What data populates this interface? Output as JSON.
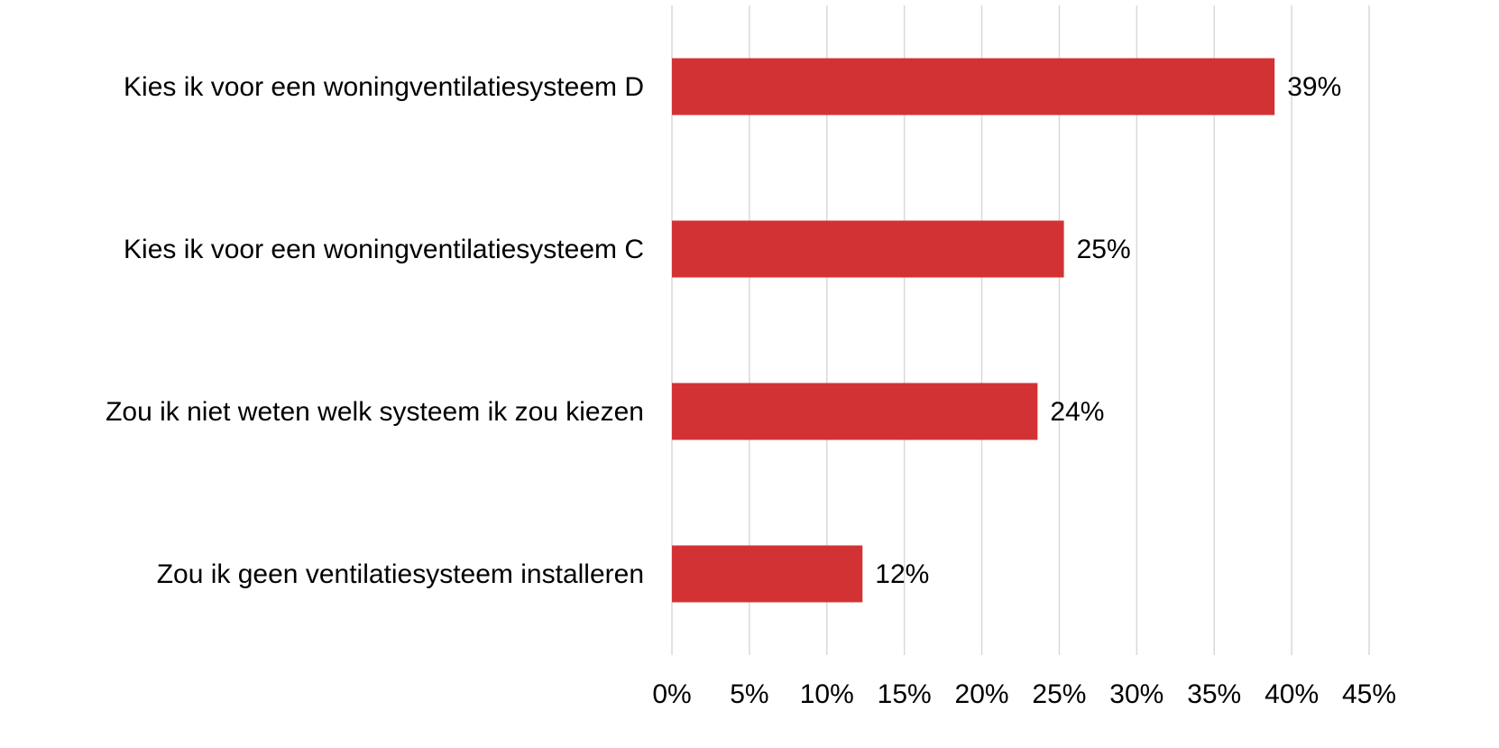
{
  "chart_data": {
    "type": "barh",
    "categories": [
      "Kies ik voor een woningventilatiesysteem D",
      "Kies ik voor een woningventilatiesysteem C",
      "Zou ik niet weten welk systeem ik zou kiezen",
      "Zou ik geen ventilatiesysteem installeren"
    ],
    "values": [
      38.9,
      25.3,
      23.6,
      12.3
    ],
    "value_labels": [
      "39%",
      "25%",
      "24%",
      "12%"
    ],
    "color": "#d33234",
    "xlim": [
      0,
      45
    ],
    "xticks": [
      {
        "value": 0,
        "label": "0%"
      },
      {
        "value": 5,
        "label": "5%"
      },
      {
        "value": 10,
        "label": "10%"
      },
      {
        "value": 15,
        "label": "15%"
      },
      {
        "value": 20,
        "label": "20%"
      },
      {
        "value": 25,
        "label": "25%"
      },
      {
        "value": 30,
        "label": "30%"
      },
      {
        "value": 35,
        "label": "35%"
      },
      {
        "value": 40,
        "label": "40%"
      },
      {
        "value": 45,
        "label": "45%"
      }
    ],
    "grid": true
  }
}
